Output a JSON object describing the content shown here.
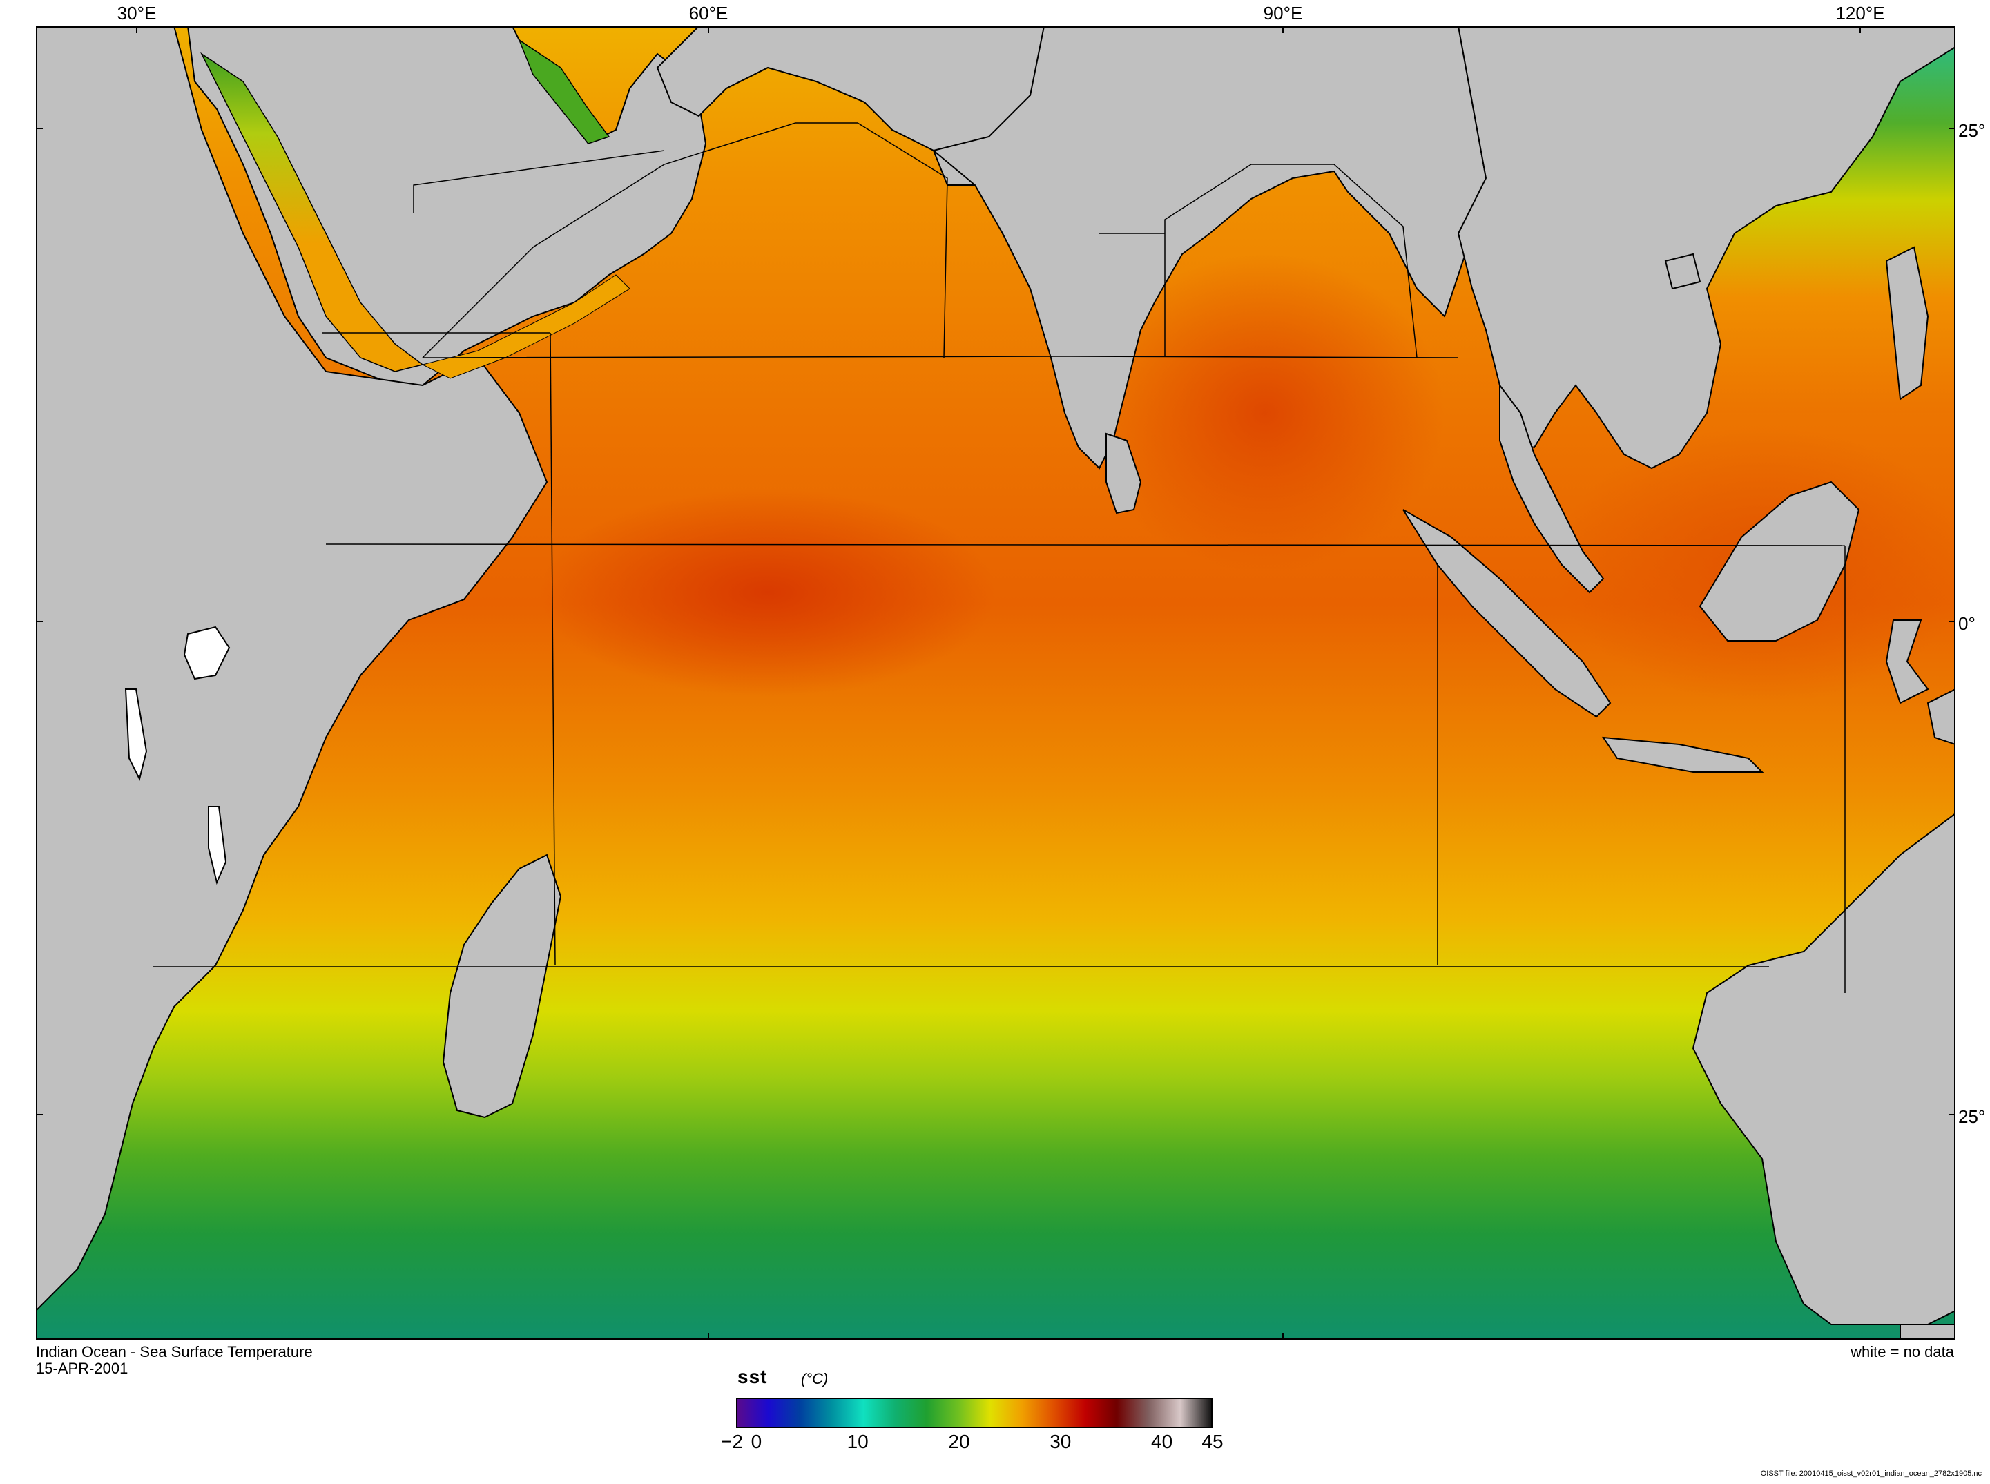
{
  "map": {
    "title": "Indian Ocean - Sea Surface Temperature",
    "date": "15-APR-2001",
    "no_data_note": "white = no data",
    "file_note": "OISST file: 20010415_oisst_v02r01_indian_ocean_2782x1905.nc",
    "longitude_labels": [
      "30°E",
      "60°E",
      "90°E",
      "120°E"
    ],
    "latitude_labels": [
      "25°",
      "0°",
      "25°"
    ],
    "land_color": "#c0c0c0",
    "no_data_color": "#ffffff",
    "coast_color": "#000000"
  },
  "colorbar": {
    "variable": "sst",
    "unit": "(°C)",
    "ticks": [
      "−2",
      "0",
      "10",
      "20",
      "30",
      "40",
      "45"
    ],
    "range": [
      -2,
      45
    ],
    "colors": [
      "#5a0a8c",
      "#1a0ad0",
      "#0040a0",
      "#0090a0",
      "#10e0c0",
      "#10b070",
      "#20a030",
      "#70c020",
      "#e0e000",
      "#f0a000",
      "#e05000",
      "#c00000",
      "#700000",
      "#806060",
      "#d8c8c8",
      "#101010"
    ]
  }
}
